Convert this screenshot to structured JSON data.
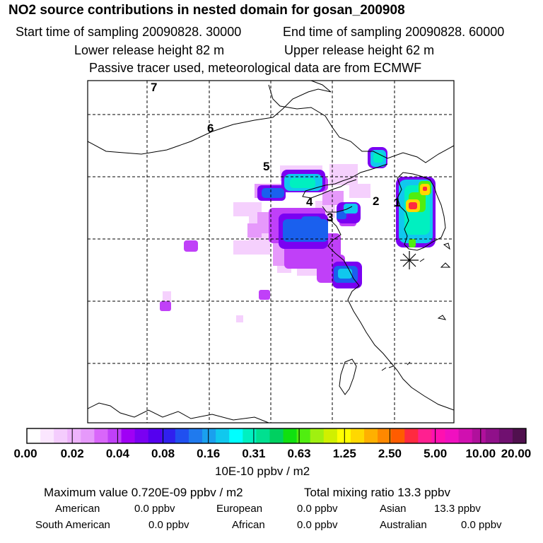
{
  "header": {
    "title": "NO2 source contributions in nested domain for gosan_200908",
    "start_label": "Start time of sampling 20090828. 30000",
    "end_label": "End time of sampling 20090828. 60000",
    "lower_label": "Lower release height   82 m",
    "upper_label": "Upper release height   62 m",
    "tracer_label": "Passive tracer used, meteorological data are from ECMWF"
  },
  "chart_data": {
    "type": "heatmap",
    "title": "NO2 source contributions in nested domain for gosan_200908",
    "field": "NO2 source contribution",
    "colorbar": {
      "unit_label": "10E-10 ppbv / m2",
      "tick_labels": [
        "0.00",
        "0.02",
        "0.04",
        "0.08",
        "0.16",
        "0.31",
        "0.63",
        "1.25",
        "2.50",
        "5.00",
        "10.00",
        "20.00"
      ],
      "colors": [
        "#ffffff",
        "#fbe6fe",
        "#f4ccfd",
        "#eeb3fc",
        "#e699fb",
        "#d966fa",
        "#c040f8",
        "#a000f5",
        "#7a00f2",
        "#5500ef",
        "#3020ee",
        "#2050f0",
        "#1f7aee",
        "#1aa0ee",
        "#10c8ee",
        "#00ffff",
        "#00f0c0",
        "#00e090",
        "#00d060",
        "#10e010",
        "#50ee10",
        "#a0f010",
        "#d0f000",
        "#ffff00",
        "#ffd800",
        "#ffb000",
        "#ff8800",
        "#ff5c00",
        "#ff2a40",
        "#ff2090",
        "#ff10b0",
        "#f010c0",
        "#d010b0",
        "#b0109c",
        "#90108a",
        "#701070",
        "#50104e"
      ]
    },
    "point_labels": [
      "1",
      "2",
      "3",
      "4",
      "5",
      "6",
      "7"
    ],
    "receptor_marker": "Gosan receptor (asterisk)"
  },
  "summary": {
    "max_label": "Maximum value  0.720E-09 ppbv / m2",
    "total_label": "Total mixing ratio       13.3 ppbv",
    "american_label": "American",
    "american_value": "0.0 ppbv",
    "european_label": "European",
    "european_value": "0.0 ppbv",
    "asian_label": "Asian",
    "asian_value": "13.3 ppbv",
    "south_american_label": "South American",
    "south_american_value": "0.0 ppbv",
    "african_label": "African",
    "african_value": "0.0 ppbv",
    "australian_label": "Australian",
    "australian_value": "0.0 ppbv"
  },
  "colors": {
    "grid": "#000000",
    "coast": "#000000",
    "background": "#ffffff"
  }
}
